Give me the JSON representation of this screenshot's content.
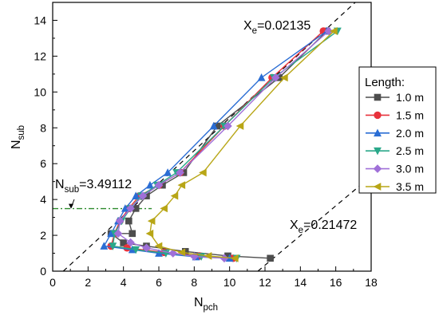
{
  "chart_data": {
    "type": "line",
    "xlabel": "N",
    "xlabel_sub": "pch",
    "ylabel": "N",
    "ylabel_sub": "sub",
    "xlim": [
      0,
      18
    ],
    "ylim": [
      0,
      15
    ],
    "xticks": [
      0,
      2,
      4,
      6,
      8,
      10,
      12,
      14,
      16,
      18
    ],
    "yticks": [
      0,
      2,
      4,
      6,
      8,
      10,
      12,
      14
    ],
    "grid": false,
    "legend_title": "Length",
    "legend_title_suffix": ":",
    "legend_position": "right",
    "series": [
      {
        "name": "1.0 m",
        "color": "#4d4d4d",
        "marker": "square",
        "points": [
          [
            12.3,
            0.72
          ],
          [
            9.9,
            0.85
          ],
          [
            7.5,
            1.1
          ],
          [
            5.3,
            1.4
          ],
          [
            4.0,
            1.58
          ],
          [
            3.3,
            2.1
          ],
          [
            4.5,
            2.1
          ],
          [
            4.3,
            2.8
          ],
          [
            4.7,
            3.5
          ],
          [
            5.3,
            4.2
          ],
          [
            6.2,
            4.8
          ],
          [
            7.4,
            5.5
          ],
          [
            9.3,
            8.1
          ],
          [
            12.8,
            10.8
          ],
          [
            15.5,
            13.4
          ]
        ]
      },
      {
        "name": "1.5 m",
        "color": "#e8323c",
        "marker": "circle",
        "points": [
          [
            10.2,
            0.72
          ],
          [
            8.3,
            0.85
          ],
          [
            6.3,
            1.05
          ],
          [
            4.2,
            1.3
          ],
          [
            3.3,
            1.4
          ],
          [
            3.5,
            2.1
          ],
          [
            3.8,
            2.8
          ],
          [
            4.3,
            3.5
          ],
          [
            4.9,
            4.2
          ],
          [
            6.0,
            4.8
          ],
          [
            7.2,
            5.5
          ],
          [
            9.7,
            8.1
          ],
          [
            12.4,
            10.8
          ],
          [
            15.3,
            13.4
          ]
        ]
      },
      {
        "name": "2.0 m",
        "color": "#2a6dd4",
        "marker": "triangle-up",
        "points": [
          [
            10.0,
            0.72
          ],
          [
            8.1,
            0.8
          ],
          [
            6.0,
            1.0
          ],
          [
            4.5,
            1.2
          ],
          [
            2.9,
            1.4
          ],
          [
            3.3,
            2.1
          ],
          [
            3.7,
            2.8
          ],
          [
            4.1,
            3.5
          ],
          [
            4.7,
            4.2
          ],
          [
            5.5,
            4.8
          ],
          [
            6.5,
            5.5
          ],
          [
            9.1,
            8.1
          ],
          [
            11.8,
            10.8
          ],
          [
            15.5,
            13.4
          ]
        ]
      },
      {
        "name": "2.5 m",
        "color": "#2aa88a",
        "marker": "triangle-down",
        "points": [
          [
            10.4,
            0.72
          ],
          [
            8.4,
            0.82
          ],
          [
            6.4,
            1.0
          ],
          [
            4.7,
            1.2
          ],
          [
            3.4,
            1.4
          ],
          [
            3.5,
            2.1
          ],
          [
            3.9,
            2.8
          ],
          [
            4.4,
            3.5
          ],
          [
            5.0,
            4.2
          ],
          [
            5.9,
            4.8
          ],
          [
            7.0,
            5.5
          ],
          [
            9.7,
            8.1
          ],
          [
            12.5,
            10.8
          ],
          [
            16.1,
            13.4
          ]
        ]
      },
      {
        "name": "3.0 m",
        "color": "#a070d8",
        "marker": "diamond",
        "points": [
          [
            9.7,
            0.72
          ],
          [
            8.0,
            0.82
          ],
          [
            6.8,
            1.0
          ],
          [
            5.3,
            1.3
          ],
          [
            4.4,
            1.6
          ],
          [
            3.7,
            2.1
          ],
          [
            3.8,
            2.8
          ],
          [
            4.4,
            3.5
          ],
          [
            5.1,
            4.2
          ],
          [
            6.0,
            4.8
          ],
          [
            7.2,
            5.5
          ],
          [
            9.9,
            8.1
          ],
          [
            12.6,
            10.8
          ],
          [
            15.6,
            13.4
          ]
        ]
      },
      {
        "name": "3.5 m",
        "color": "#b8a616",
        "marker": "triangle-left",
        "points": [
          [
            10.3,
            0.72
          ],
          [
            8.8,
            0.85
          ],
          [
            7.3,
            1.05
          ],
          [
            6.0,
            1.4
          ],
          [
            5.5,
            2.1
          ],
          [
            5.6,
            2.8
          ],
          [
            6.3,
            3.5
          ],
          [
            6.9,
            4.2
          ],
          [
            7.3,
            4.8
          ],
          [
            8.5,
            5.5
          ],
          [
            10.6,
            8.1
          ],
          [
            13.1,
            10.8
          ],
          [
            15.9,
            13.4
          ]
        ]
      }
    ],
    "reference_lines": [
      {
        "label": "X",
        "label_sub": "e",
        "label_value": "=0.02135",
        "points": [
          [
            0.6,
            0
          ],
          [
            17.1,
            15
          ]
        ]
      },
      {
        "label": "X",
        "label_sub": "e",
        "label_value": "=0.21472",
        "points": [
          [
            11.6,
            0
          ],
          [
            18,
            5.3
          ]
        ]
      }
    ],
    "annotation": {
      "label": "N",
      "label_sub": "sub",
      "label_value": "=3.49112",
      "y": 3.49112,
      "color": "#2e8b2e"
    }
  }
}
